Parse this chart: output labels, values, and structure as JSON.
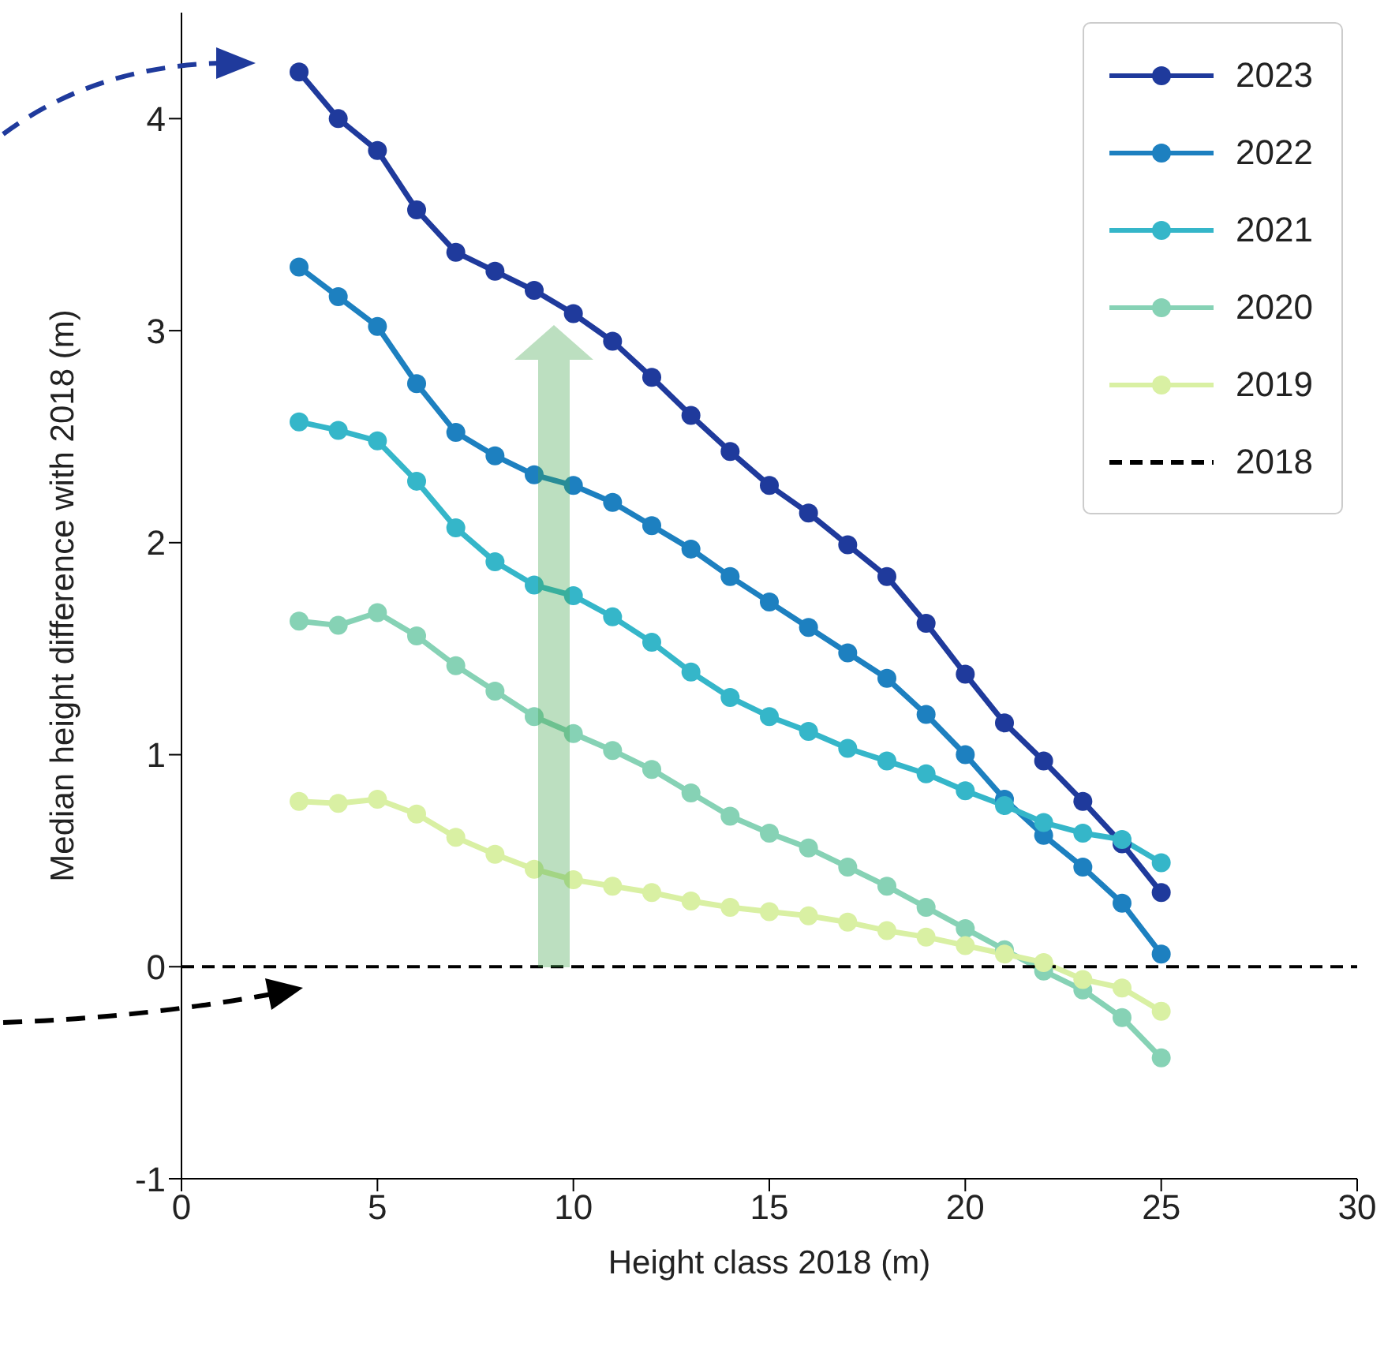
{
  "chart_data": {
    "type": "line",
    "xlabel": "Height class 2018 (m)",
    "ylabel": "Median height difference with 2018 (m)",
    "x": [
      3,
      4,
      5,
      6,
      7,
      8,
      9,
      10,
      11,
      12,
      13,
      14,
      15,
      16,
      17,
      18,
      19,
      20,
      21,
      22,
      23,
      24,
      25
    ],
    "series": [
      {
        "name": "2023",
        "color": "#1f3a9c",
        "values": [
          4.22,
          4.0,
          3.85,
          3.57,
          3.37,
          3.28,
          3.19,
          3.08,
          2.95,
          2.78,
          2.6,
          2.43,
          2.27,
          2.14,
          1.99,
          1.84,
          1.62,
          1.38,
          1.15,
          0.97,
          0.78,
          0.58,
          0.35
        ]
      },
      {
        "name": "2022",
        "color": "#1d80c0",
        "values": [
          3.3,
          3.16,
          3.02,
          2.75,
          2.52,
          2.41,
          2.32,
          2.27,
          2.19,
          2.08,
          1.97,
          1.84,
          1.72,
          1.6,
          1.48,
          1.36,
          1.19,
          1.0,
          0.79,
          0.62,
          0.47,
          0.3,
          0.06
        ]
      },
      {
        "name": "2021",
        "color": "#35b6c9",
        "values": [
          2.57,
          2.53,
          2.48,
          2.29,
          2.07,
          1.91,
          1.8,
          1.75,
          1.65,
          1.53,
          1.39,
          1.27,
          1.18,
          1.11,
          1.03,
          0.97,
          0.91,
          0.83,
          0.76,
          0.68,
          0.63,
          0.6,
          0.49
        ]
      },
      {
        "name": "2020",
        "color": "#86d2b5",
        "values": [
          1.63,
          1.61,
          1.67,
          1.56,
          1.42,
          1.3,
          1.18,
          1.1,
          1.02,
          0.93,
          0.82,
          0.71,
          0.63,
          0.56,
          0.47,
          0.38,
          0.28,
          0.18,
          0.08,
          -0.02,
          -0.11,
          -0.24,
          -0.43
        ]
      },
      {
        "name": "2019",
        "color": "#d9f0a3",
        "values": [
          0.78,
          0.77,
          0.79,
          0.72,
          0.61,
          0.53,
          0.46,
          0.41,
          0.38,
          0.35,
          0.31,
          0.28,
          0.26,
          0.24,
          0.21,
          0.17,
          0.14,
          0.1,
          0.06,
          0.02,
          -0.06,
          -0.1,
          -0.21
        ]
      },
      {
        "name": "2018",
        "color": "#000000",
        "x": [
          0,
          30
        ],
        "values": [
          0,
          0
        ],
        "marker": "none",
        "line_style": "dashed"
      }
    ],
    "xlim": [
      0,
      30
    ],
    "xticks": [
      0,
      5,
      10,
      15,
      20,
      25,
      30
    ],
    "ylim": [
      -1,
      4.5
    ],
    "yticks": [
      -1,
      0,
      1,
      2,
      3,
      4
    ],
    "legend": "top right",
    "marker": "circle",
    "line_style": "solid"
  }
}
